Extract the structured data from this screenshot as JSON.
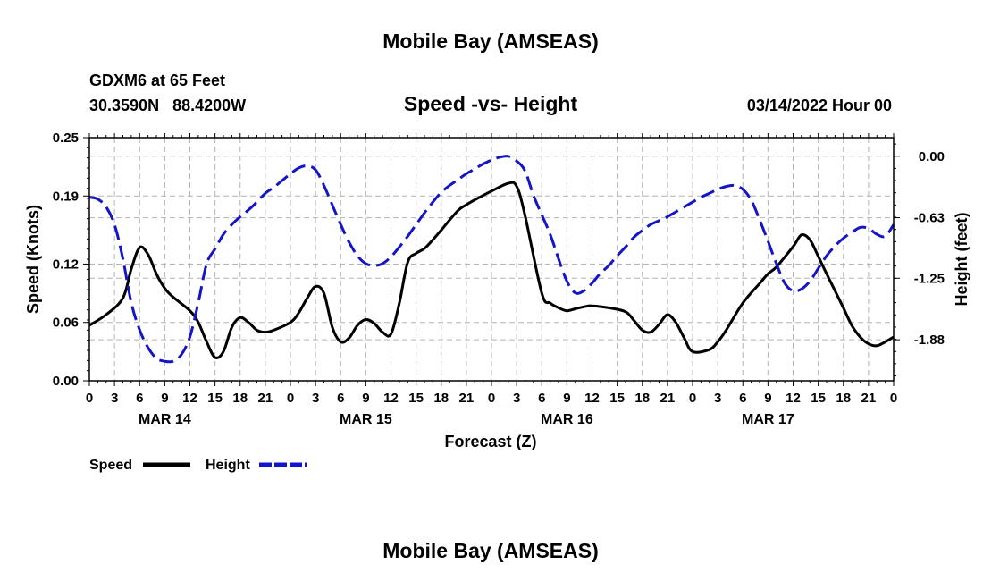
{
  "title": "Mobile Bay (AMSEAS)",
  "title_bottom": "Mobile Bay (AMSEAS)",
  "station": {
    "id_line": "GDXM6 at 65 Feet",
    "coords": "30.3590N   88.4200W"
  },
  "subtitle": "Speed -vs- Height",
  "date_label": "03/14/2022 Hour 00",
  "colors": {
    "speed": "#000000",
    "height": "#1515c8",
    "grid": "#b4b4b4"
  },
  "chart_data": {
    "type": "line",
    "title": "Speed -vs- Height",
    "xlabel": "Forecast (Z)",
    "ylabel": "Speed (Knots)",
    "y2label": "Height (feet)",
    "x_range": [
      0,
      96
    ],
    "ylim": [
      0,
      0.25
    ],
    "y2lim": [
      -2.3,
      0.19
    ],
    "grid": true,
    "x_tick_hours": [
      0,
      3,
      6,
      9,
      12,
      15,
      18,
      21,
      24,
      27,
      30,
      33,
      36,
      39,
      42,
      45,
      48,
      51,
      54,
      57,
      60,
      63,
      66,
      69,
      72,
      75,
      78,
      81,
      84,
      87,
      90,
      93,
      96
    ],
    "x_tick_labels": [
      "0",
      "3",
      "6",
      "9",
      "12",
      "15",
      "18",
      "21",
      "0",
      "3",
      "6",
      "9",
      "12",
      "15",
      "18",
      "21",
      "0",
      "3",
      "6",
      "9",
      "12",
      "15",
      "18",
      "21",
      "0",
      "3",
      "6",
      "9",
      "12",
      "15",
      "18",
      "21",
      "0"
    ],
    "day_labels": [
      {
        "hour": 9,
        "label": "MAR 14"
      },
      {
        "hour": 33,
        "label": "MAR 15"
      },
      {
        "hour": 57,
        "label": "MAR 16"
      },
      {
        "hour": 81,
        "label": "MAR 17"
      }
    ],
    "y_ticks": [
      0.0,
      0.06,
      0.12,
      0.19,
      0.25
    ],
    "y_tick_labels": [
      "0.00",
      "0.06",
      "0.12",
      "0.19",
      "0.25"
    ],
    "y2_ticks": [
      0.0,
      -0.63,
      -1.25,
      -1.88
    ],
    "y2_tick_labels": [
      "0.00",
      "-0.63",
      "-1.25",
      "-1.88"
    ],
    "legend": [
      {
        "name": "Speed",
        "style": "solid"
      },
      {
        "name": "Height",
        "style": "dashed"
      }
    ],
    "series": [
      {
        "name": "Speed",
        "axis": "left",
        "x": [
          0,
          2,
          4,
          5,
          6,
          7,
          8,
          9,
          10,
          12,
          13,
          14,
          15,
          16,
          17,
          18,
          19,
          20,
          21,
          22,
          24,
          25,
          26,
          27,
          28,
          29,
          30,
          31,
          32,
          33,
          34,
          35,
          36,
          37,
          38,
          39,
          40,
          41,
          42,
          44,
          45,
          46,
          48,
          50,
          51,
          52,
          54,
          55,
          56,
          57,
          58,
          59,
          60,
          62,
          64,
          65,
          66,
          67,
          68,
          69,
          70,
          71,
          72,
          74,
          75,
          76,
          78,
          80,
          81,
          82,
          84,
          85,
          86,
          87,
          88,
          90,
          91,
          92,
          93,
          94,
          95,
          96
        ],
        "y": [
          0.057,
          0.068,
          0.085,
          0.115,
          0.137,
          0.13,
          0.11,
          0.095,
          0.086,
          0.072,
          0.06,
          0.04,
          0.024,
          0.03,
          0.055,
          0.065,
          0.06,
          0.052,
          0.05,
          0.052,
          0.06,
          0.07,
          0.085,
          0.097,
          0.09,
          0.055,
          0.04,
          0.044,
          0.057,
          0.063,
          0.059,
          0.05,
          0.048,
          0.08,
          0.122,
          0.131,
          0.136,
          0.145,
          0.155,
          0.175,
          0.181,
          0.186,
          0.195,
          0.203,
          0.2,
          0.17,
          0.09,
          0.08,
          0.075,
          0.072,
          0.074,
          0.076,
          0.077,
          0.075,
          0.071,
          0.062,
          0.052,
          0.05,
          0.058,
          0.068,
          0.06,
          0.044,
          0.03,
          0.032,
          0.04,
          0.052,
          0.08,
          0.1,
          0.11,
          0.117,
          0.138,
          0.15,
          0.145,
          0.128,
          0.11,
          0.075,
          0.057,
          0.045,
          0.038,
          0.036,
          0.04,
          0.045
        ]
      },
      {
        "name": "Height",
        "axis": "right",
        "x": [
          0,
          1,
          2,
          3,
          4,
          5,
          6,
          7,
          8,
          9,
          10,
          11,
          12,
          13,
          14,
          15,
          16,
          17,
          18,
          19,
          20,
          21,
          22,
          23,
          24,
          25,
          26,
          27,
          28,
          29,
          30,
          31,
          32,
          33,
          34,
          35,
          36,
          37,
          38,
          39,
          40,
          41,
          42,
          43,
          44,
          45,
          46,
          47,
          48,
          49,
          50,
          51,
          52,
          53,
          54,
          55,
          56,
          57,
          58,
          59,
          60,
          61,
          62,
          63,
          64,
          65,
          66,
          67,
          68,
          69,
          70,
          71,
          72,
          73,
          74,
          75,
          76,
          77,
          78,
          79,
          80,
          81,
          82,
          83,
          84,
          85,
          86,
          87,
          88,
          89,
          90,
          91,
          92,
          93,
          94,
          95,
          96
        ],
        "y": [
          -0.42,
          -0.44,
          -0.52,
          -0.7,
          -1.05,
          -1.5,
          -1.78,
          -1.96,
          -2.07,
          -2.1,
          -2.1,
          -2.03,
          -1.85,
          -1.5,
          -1.1,
          -0.95,
          -0.8,
          -0.7,
          -0.62,
          -0.55,
          -0.47,
          -0.38,
          -0.32,
          -0.25,
          -0.18,
          -0.12,
          -0.1,
          -0.14,
          -0.3,
          -0.5,
          -0.7,
          -0.88,
          -1.02,
          -1.1,
          -1.12,
          -1.1,
          -1.03,
          -0.93,
          -0.82,
          -0.7,
          -0.58,
          -0.47,
          -0.37,
          -0.3,
          -0.24,
          -0.18,
          -0.13,
          -0.08,
          -0.04,
          -0.01,
          0.0,
          -0.05,
          -0.15,
          -0.4,
          -0.6,
          -0.8,
          -1.05,
          -1.28,
          -1.4,
          -1.38,
          -1.3,
          -1.2,
          -1.12,
          -1.02,
          -0.93,
          -0.83,
          -0.76,
          -0.7,
          -0.66,
          -0.62,
          -0.57,
          -0.52,
          -0.47,
          -0.42,
          -0.38,
          -0.34,
          -0.31,
          -0.3,
          -0.34,
          -0.45,
          -0.65,
          -0.87,
          -1.1,
          -1.3,
          -1.38,
          -1.36,
          -1.28,
          -1.15,
          -1.02,
          -0.92,
          -0.84,
          -0.78,
          -0.73,
          -0.74,
          -0.8,
          -0.82,
          -0.7
        ]
      }
    ]
  }
}
